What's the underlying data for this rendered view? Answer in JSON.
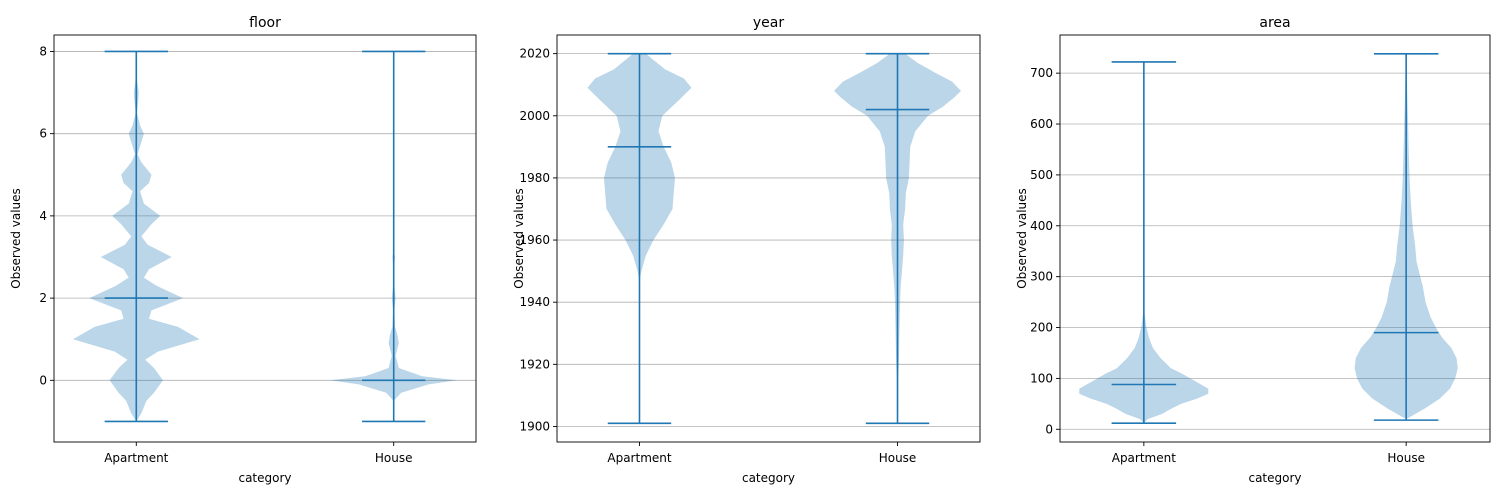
{
  "colors": {
    "body": "#1f77b4",
    "body_alpha": 0.3,
    "line": "#1f77b4",
    "grid": "#b0b0b0",
    "axes": "#000000"
  },
  "chart_data": [
    {
      "type": "violin",
      "title": "floor",
      "xlabel": "category",
      "ylabel": "Observed values",
      "categories": [
        "Apartment",
        "House"
      ],
      "ylim": [
        -1.5,
        8.4
      ],
      "yticks": [
        0,
        2,
        4,
        6,
        8
      ],
      "grid": "y",
      "violins": [
        {
          "category": "Apartment",
          "min": -1,
          "max": 8,
          "median": 2,
          "profile": [
            [
              -1,
              0
            ],
            [
              -0.8,
              0.08
            ],
            [
              -0.5,
              0.16
            ],
            [
              -0.3,
              0.28
            ],
            [
              0,
              0.42
            ],
            [
              0.3,
              0.28
            ],
            [
              0.5,
              0.14
            ],
            [
              0.7,
              0.34
            ],
            [
              1,
              1.0
            ],
            [
              1.3,
              0.66
            ],
            [
              1.5,
              0.2
            ],
            [
              1.7,
              0.24
            ],
            [
              2,
              0.74
            ],
            [
              2.3,
              0.32
            ],
            [
              2.5,
              0.12
            ],
            [
              2.7,
              0.2
            ],
            [
              3,
              0.56
            ],
            [
              3.3,
              0.18
            ],
            [
              3.5,
              0.08
            ],
            [
              3.8,
              0.24
            ],
            [
              4,
              0.38
            ],
            [
              4.3,
              0.12
            ],
            [
              4.6,
              0.06
            ],
            [
              4.8,
              0.2
            ],
            [
              5,
              0.24
            ],
            [
              5.3,
              0.08
            ],
            [
              5.5,
              0.02
            ],
            [
              5.8,
              0.08
            ],
            [
              6,
              0.12
            ],
            [
              6.2,
              0.06
            ],
            [
              6.5,
              0.01
            ],
            [
              6.8,
              0.03
            ],
            [
              7,
              0.04
            ],
            [
              7.2,
              0.02
            ],
            [
              7.5,
              0.0
            ]
          ]
        },
        {
          "category": "House",
          "min": -1,
          "max": 8,
          "median": 0,
          "profile": [
            [
              -0.5,
              0.0
            ],
            [
              -0.3,
              0.12
            ],
            [
              -0.1,
              0.55
            ],
            [
              0,
              1.0
            ],
            [
              0.1,
              0.45
            ],
            [
              0.3,
              0.08
            ],
            [
              0.6,
              0.03
            ],
            [
              0.9,
              0.08
            ],
            [
              1.1,
              0.06
            ],
            [
              1.3,
              0.02
            ],
            [
              1.7,
              0.01
            ],
            [
              2,
              0.03
            ],
            [
              2.3,
              0.01
            ],
            [
              2.8,
              0.01
            ],
            [
              3,
              0.02
            ],
            [
              3.2,
              0.0
            ]
          ]
        }
      ]
    },
    {
      "type": "violin",
      "title": "year",
      "xlabel": "category",
      "ylabel": "Observed values",
      "categories": [
        "Apartment",
        "House"
      ],
      "ylim": [
        1895,
        2026
      ],
      "yticks": [
        1900,
        1920,
        1940,
        1960,
        1980,
        2000,
        2020
      ],
      "grid": "y",
      "violins": [
        {
          "category": "Apartment",
          "min": 1901,
          "max": 2020,
          "median": 1990,
          "profile": [
            [
              1947,
              0.0
            ],
            [
              1950,
              0.03
            ],
            [
              1955,
              0.1
            ],
            [
              1960,
              0.22
            ],
            [
              1965,
              0.38
            ],
            [
              1970,
              0.52
            ],
            [
              1975,
              0.54
            ],
            [
              1980,
              0.56
            ],
            [
              1985,
              0.5
            ],
            [
              1990,
              0.38
            ],
            [
              1995,
              0.3
            ],
            [
              2000,
              0.36
            ],
            [
              2005,
              0.62
            ],
            [
              2009,
              0.82
            ],
            [
              2012,
              0.7
            ],
            [
              2015,
              0.4
            ],
            [
              2018,
              0.22
            ],
            [
              2020,
              0.1
            ]
          ]
        },
        {
          "category": "House",
          "min": 1901,
          "max": 2020,
          "median": 2002,
          "profile": [
            [
              1901,
              0.0
            ],
            [
              1905,
              0.01
            ],
            [
              1915,
              0.01
            ],
            [
              1920,
              0.02
            ],
            [
              1930,
              0.03
            ],
            [
              1940,
              0.04
            ],
            [
              1945,
              0.05
            ],
            [
              1950,
              0.07
            ],
            [
              1955,
              0.09
            ],
            [
              1960,
              0.1
            ],
            [
              1965,
              0.09
            ],
            [
              1970,
              0.12
            ],
            [
              1975,
              0.13
            ],
            [
              1980,
              0.18
            ],
            [
              1985,
              0.19
            ],
            [
              1990,
              0.2
            ],
            [
              1995,
              0.28
            ],
            [
              2000,
              0.48
            ],
            [
              2003,
              0.72
            ],
            [
              2006,
              0.9
            ],
            [
              2008,
              1.0
            ],
            [
              2011,
              0.86
            ],
            [
              2014,
              0.58
            ],
            [
              2017,
              0.32
            ],
            [
              2020,
              0.12
            ]
          ]
        }
      ]
    },
    {
      "type": "violin",
      "title": "area",
      "xlabel": "category",
      "ylabel": "Observed values",
      "categories": [
        "Apartment",
        "House"
      ],
      "ylim": [
        -25,
        775
      ],
      "yticks": [
        0,
        100,
        200,
        300,
        400,
        500,
        600,
        700
      ],
      "grid": "y",
      "violins": [
        {
          "category": "Apartment",
          "min": 12,
          "max": 722,
          "median": 88,
          "profile": [
            [
              12,
              0.0
            ],
            [
              20,
              0.06
            ],
            [
              30,
              0.28
            ],
            [
              40,
              0.42
            ],
            [
              50,
              0.58
            ],
            [
              60,
              0.82
            ],
            [
              70,
              1.0
            ],
            [
              80,
              1.0
            ],
            [
              90,
              0.86
            ],
            [
              100,
              0.72
            ],
            [
              110,
              0.58
            ],
            [
              120,
              0.42
            ],
            [
              140,
              0.26
            ],
            [
              160,
              0.14
            ],
            [
              180,
              0.08
            ],
            [
              200,
              0.04
            ],
            [
              220,
              0.02
            ],
            [
              240,
              0.0
            ]
          ]
        },
        {
          "category": "House",
          "min": 18,
          "max": 738,
          "median": 190,
          "profile": [
            [
              20,
              0.0
            ],
            [
              40,
              0.28
            ],
            [
              60,
              0.52
            ],
            [
              80,
              0.68
            ],
            [
              100,
              0.76
            ],
            [
              120,
              0.8
            ],
            [
              140,
              0.78
            ],
            [
              160,
              0.7
            ],
            [
              180,
              0.56
            ],
            [
              200,
              0.46
            ],
            [
              220,
              0.38
            ],
            [
              250,
              0.3
            ],
            [
              280,
              0.26
            ],
            [
              300,
              0.22
            ],
            [
              330,
              0.16
            ],
            [
              360,
              0.14
            ],
            [
              400,
              0.1
            ],
            [
              450,
              0.07
            ],
            [
              500,
              0.05
            ],
            [
              550,
              0.04
            ],
            [
              600,
              0.03
            ],
            [
              650,
              0.02
            ],
            [
              700,
              0.01
            ],
            [
              738,
              0.0
            ]
          ]
        }
      ]
    }
  ]
}
